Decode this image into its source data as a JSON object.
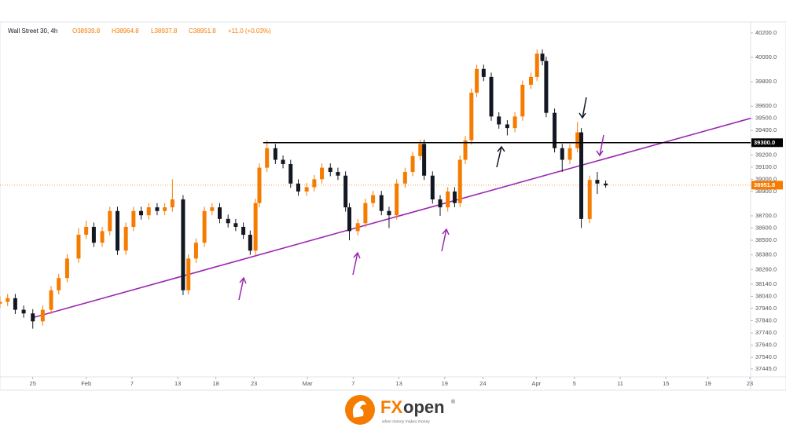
{
  "chart_data": {
    "type": "candlestick",
    "legend": {
      "symbol": "Wall Street 30, 4h",
      "open": "O38939.8",
      "high": "H38964.8",
      "low": "L38937.8",
      "close": "C38951.8",
      "change": "+11.0 (+0.03%)"
    },
    "up_color": "#f57c00",
    "down_color": "#131722",
    "x": [
      -4.3,
      -3.3,
      -2.3,
      -1.2,
      0,
      1.3,
      2.4,
      3.4,
      4.5,
      6.0,
      7.0,
      8.0,
      9.1,
      10.1,
      11.1,
      12.2,
      13.2,
      14.2,
      15.2,
      16.3,
      17.3,
      18.3,
      19.7,
      20.4,
      21.4,
      22.5,
      23.5,
      24.5,
      25.6,
      26.6,
      27.6,
      28.5,
      29.2,
      29.7,
      30.7,
      31.8,
      32.8,
      33.8,
      34.8,
      35.9,
      36.9,
      37.9,
      39.0,
      40.0,
      41.0,
      41.5,
      42.6,
      43.6,
      44.6,
      45.7,
      46.7,
      47.7,
      48.8,
      49.8,
      50.8,
      51.3,
      52.4,
      53.4,
      54.4,
      55.3,
      56.0,
      56.7,
      57.5,
      58.2,
      59.1,
      60.1,
      61.1,
      62.2,
      63.2,
      64.2,
      65.3,
      66.1,
      66.8,
      67.3,
      68.4,
      69.4,
      70.4,
      71.4,
      71.9,
      73.0,
      74.0,
      75.1
    ],
    "open": [
      37980,
      37995,
      38025,
      37930,
      37900,
      37835,
      37930,
      38090,
      38190,
      38350,
      38545,
      38610,
      38480,
      38575,
      38740,
      38415,
      38610,
      38740,
      38705,
      38770,
      38740,
      38770,
      38835,
      38090,
      38350,
      38480,
      38740,
      38770,
      38675,
      38640,
      38610,
      38545,
      38415,
      38805,
      39095,
      39255,
      39160,
      39125,
      38965,
      38900,
      38935,
      39000,
      39095,
      39060,
      39030,
      38770,
      38575,
      38640,
      38805,
      38870,
      38740,
      38705,
      38965,
      39060,
      39190,
      39290,
      39030,
      38835,
      38770,
      38900,
      38805,
      39160,
      39320,
      39710,
      39905,
      39840,
      39515,
      39450,
      39420,
      39515,
      39775,
      39840,
      40030,
      39970,
      39545,
      39255,
      39160,
      39255,
      39385,
      38675,
      38995,
      38965
    ],
    "high": [
      38040,
      38060,
      38060,
      37965,
      37935,
      37965,
      38125,
      38225,
      38385,
      38600,
      38660,
      38645,
      38610,
      38775,
      38775,
      38645,
      38775,
      38775,
      38805,
      38805,
      38805,
      39000,
      38870,
      38385,
      38515,
      38775,
      38805,
      38805,
      38710,
      38675,
      38645,
      38580,
      38840,
      39130,
      39320,
      39290,
      39195,
      39160,
      39000,
      38970,
      39035,
      39130,
      39130,
      39095,
      39065,
      38805,
      38675,
      38840,
      38905,
      38905,
      38775,
      39000,
      39095,
      39225,
      39325,
      39325,
      39065,
      38870,
      38935,
      38935,
      39195,
      39355,
      39745,
      39940,
      39940,
      39875,
      39550,
      39485,
      39550,
      39810,
      39875,
      40065,
      40065,
      40005,
      39580,
      39290,
      39290,
      39470,
      39420,
      39030,
      39060,
      38990
    ],
    "low": [
      37945,
      37960,
      37895,
      37865,
      37775,
      37800,
      37895,
      38055,
      38155,
      38315,
      38510,
      38445,
      38445,
      38540,
      38380,
      38380,
      38575,
      38670,
      38670,
      38705,
      38705,
      38735,
      38050,
      38055,
      38315,
      38445,
      38705,
      38640,
      38605,
      38575,
      38510,
      38380,
      38380,
      38770,
      39060,
      39125,
      39090,
      38930,
      38865,
      38865,
      38900,
      38965,
      39025,
      38995,
      38735,
      38500,
      38540,
      38605,
      38770,
      38705,
      38600,
      38670,
      38930,
      39025,
      39155,
      38995,
      38800,
      38700,
      38735,
      38770,
      38770,
      39125,
      39285,
      39675,
      39805,
      39480,
      39415,
      39360,
      39385,
      39480,
      39740,
      39805,
      39935,
      39510,
      39220,
      39060,
      39125,
      39220,
      38600,
      38640,
      38880,
      38930
    ],
    "close": [
      37995,
      38025,
      37930,
      37900,
      37835,
      37930,
      38090,
      38190,
      38350,
      38545,
      38610,
      38480,
      38575,
      38740,
      38415,
      38610,
      38740,
      38705,
      38770,
      38740,
      38770,
      38835,
      38090,
      38350,
      38480,
      38740,
      38770,
      38675,
      38640,
      38610,
      38545,
      38415,
      38805,
      39095,
      39255,
      39160,
      39125,
      38965,
      38900,
      38935,
      39000,
      39095,
      39060,
      39030,
      38770,
      38575,
      38640,
      38805,
      38870,
      38740,
      38705,
      38965,
      39060,
      39190,
      39290,
      39030,
      38835,
      38770,
      38900,
      38805,
      39160,
      39320,
      39710,
      39905,
      39840,
      39515,
      39450,
      39420,
      39515,
      39775,
      39840,
      40030,
      39970,
      39545,
      39255,
      39160,
      39255,
      39385,
      38675,
      38995,
      38965,
      38950
    ],
    "xlim": [
      -4.3,
      94.1
    ],
    "ylim": [
      37380,
      40290
    ],
    "xticks": [
      {
        "value": 0,
        "label": "25"
      },
      {
        "value": 7,
        "label": "Feb"
      },
      {
        "value": 13,
        "label": "7"
      },
      {
        "value": 19,
        "label": "13"
      },
      {
        "value": 24,
        "label": "18"
      },
      {
        "value": 29,
        "label": "23"
      },
      {
        "value": 36,
        "label": "Mar"
      },
      {
        "value": 42,
        "label": "7"
      },
      {
        "value": 48,
        "label": "13"
      },
      {
        "value": 54,
        "label": "19"
      },
      {
        "value": 59,
        "label": "24"
      },
      {
        "value": 66,
        "label": "Apr"
      },
      {
        "value": 71,
        "label": "5"
      },
      {
        "value": 77,
        "label": "11"
      },
      {
        "value": 83,
        "label": "15"
      },
      {
        "value": 88.5,
        "label": "19"
      },
      {
        "value": 94,
        "label": "23"
      }
    ],
    "yticks": [
      {
        "value": 40200,
        "label": "40200.0"
      },
      {
        "value": 40000,
        "label": "40000.0"
      },
      {
        "value": 39800,
        "label": "39800.0"
      },
      {
        "value": 39600,
        "label": "39600.0"
      },
      {
        "value": 39500,
        "label": "39500.0"
      },
      {
        "value": 39400,
        "label": "39400.0"
      },
      {
        "value": 39200,
        "label": "39200.0"
      },
      {
        "value": 39100,
        "label": "39100.0"
      },
      {
        "value": 39000,
        "label": "39000.0"
      },
      {
        "value": 38900,
        "label": "38900.0"
      },
      {
        "value": 38700,
        "label": "38700.0"
      },
      {
        "value": 38600,
        "label": "38600.0"
      },
      {
        "value": 38500,
        "label": "38500.0"
      },
      {
        "value": 38380,
        "label": "38380.0"
      },
      {
        "value": 38260,
        "label": "38260.0"
      },
      {
        "value": 38140,
        "label": "38140.0"
      },
      {
        "value": 38040,
        "label": "38040.0"
      },
      {
        "value": 37940,
        "label": "37940.0"
      },
      {
        "value": 37840,
        "label": "37840.0"
      },
      {
        "value": 37740,
        "label": "37740.0"
      },
      {
        "value": 37640,
        "label": "37640.0"
      },
      {
        "value": 37540,
        "label": "37540.0"
      },
      {
        "value": 37445,
        "label": "37445.0"
      }
    ],
    "hline": {
      "value": 39300,
      "label": "39300.0",
      "x_start": 30.2,
      "color": "#000000"
    },
    "last_price": {
      "value": 38951.8,
      "color": "#f57c00"
    },
    "trendline": {
      "x": [
        0,
        94.1
      ],
      "y": [
        37865,
        39500
      ],
      "color": "#9c27b0"
    },
    "grid": false
  },
  "brand": {
    "name_1": "FX",
    "name_2": "open",
    "tagline": "when money makes money",
    "mark": "®"
  }
}
